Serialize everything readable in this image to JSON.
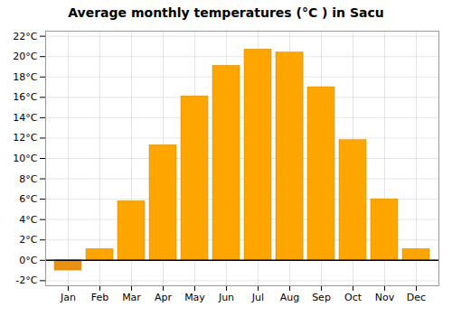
{
  "chart_data": {
    "type": "bar",
    "title": "Average monthly temperatures (°C ) in Sacu",
    "categories": [
      "Jan",
      "Feb",
      "Mar",
      "Apr",
      "May",
      "Jun",
      "Jul",
      "Aug",
      "Sep",
      "Oct",
      "Nov",
      "Dec"
    ],
    "values": [
      -1.0,
      1.1,
      5.8,
      11.3,
      16.1,
      19.1,
      20.7,
      20.4,
      17.0,
      11.8,
      6.0,
      1.1
    ],
    "colors": [
      "#E89010",
      "#FFA500",
      "#FFA500",
      "#FFA500",
      "#FFA500",
      "#FFA500",
      "#FFA500",
      "#FFA500",
      "#FFA500",
      "#FFA500",
      "#FFA500",
      "#FFA500"
    ],
    "ylim": [
      -2.5,
      22.5
    ],
    "yticks": [
      {
        "value": -2,
        "label": "-2°C"
      },
      {
        "value": 0,
        "label": "0°C"
      },
      {
        "value": 2,
        "label": "2°C"
      },
      {
        "value": 4,
        "label": "4°C"
      },
      {
        "value": 6,
        "label": "6°C"
      },
      {
        "value": 8,
        "label": "8°C"
      },
      {
        "value": 10,
        "label": "10°C"
      },
      {
        "value": 12,
        "label": "12°C"
      },
      {
        "value": 14,
        "label": "14°C"
      },
      {
        "value": 16,
        "label": "16°C"
      },
      {
        "value": 18,
        "label": "18°C"
      },
      {
        "value": 20,
        "label": "20°C"
      },
      {
        "value": 22,
        "label": "22°C"
      }
    ],
    "grid": true
  }
}
